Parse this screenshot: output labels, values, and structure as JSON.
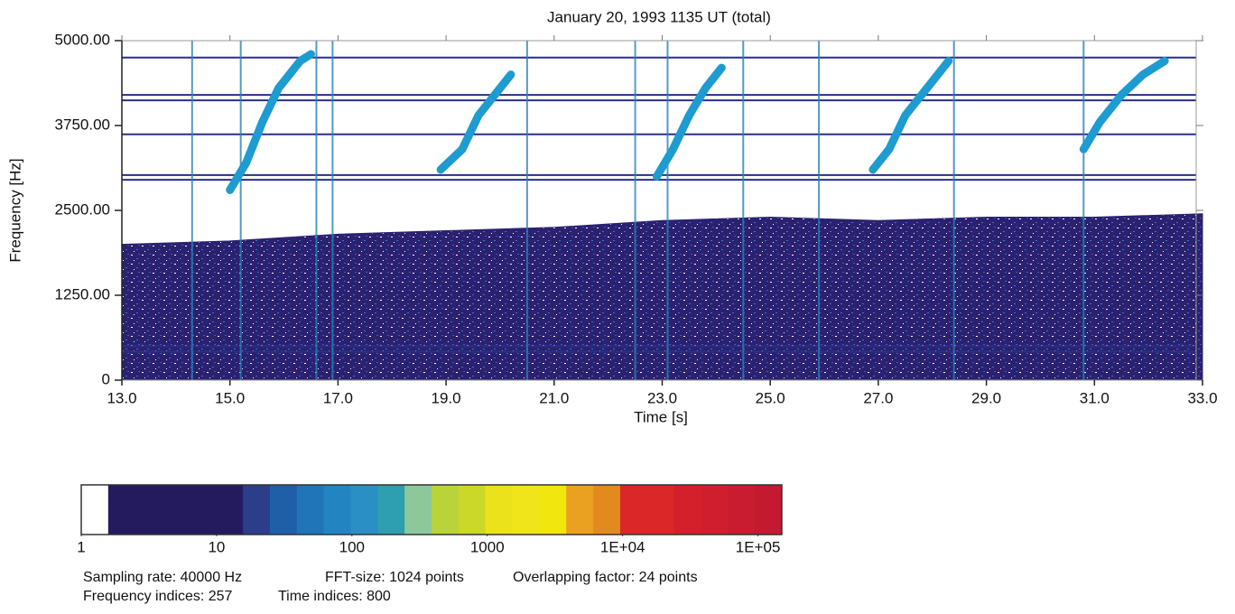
{
  "chart_data": {
    "type": "spectrogram",
    "title": "January 20, 1993 1135 UT (total)",
    "x_label": "Time [s]",
    "y_label": "Frequency [Hz]",
    "xlim": [
      13,
      33
    ],
    "ylim": [
      0,
      5000
    ],
    "xticks": [
      {
        "value": 13,
        "label": "13.0"
      },
      {
        "value": 15,
        "label": "15.0"
      },
      {
        "value": 17,
        "label": "17.0"
      },
      {
        "value": 19,
        "label": "19.0"
      },
      {
        "value": 21,
        "label": "21.0"
      },
      {
        "value": 23,
        "label": "23.0"
      },
      {
        "value": 25,
        "label": "25.0"
      },
      {
        "value": 27,
        "label": "27.0"
      },
      {
        "value": 29,
        "label": "29.0"
      },
      {
        "value": 31,
        "label": "31.0"
      },
      {
        "value": 33,
        "label": "33.0"
      }
    ],
    "yticks": [
      0,
      {
        "value": 1250,
        "label": "1250.00"
      },
      {
        "value": 2500,
        "label": "2500.00"
      },
      {
        "value": 3750,
        "label": "3750.00"
      },
      {
        "value": 5000,
        "label": "5000.00"
      }
    ],
    "grid": false,
    "background_band": {
      "color": "#2b2170",
      "x": [
        13,
        15,
        17,
        19,
        21,
        23,
        25,
        27,
        29,
        31,
        33
      ],
      "values": [
        2000,
        2050,
        2150,
        2200,
        2250,
        2350,
        2400,
        2350,
        2400,
        2400,
        2450
      ]
    },
    "horizontal_lines": {
      "color": "#2a2f8a",
      "values": [
        4750,
        4200,
        4120,
        3620,
        3020,
        2950,
        500,
        420
      ]
    },
    "vertical_lines": {
      "color": "#2a80b8",
      "values": [
        14.3,
        15.2,
        16.6,
        16.9,
        20.5,
        22.5,
        23.1,
        24.5,
        25.9,
        28.4,
        30.8
      ]
    },
    "traces": [
      {
        "color": "#1e9bd0",
        "x": [
          15.0,
          15.3,
          15.6,
          15.9,
          16.3,
          16.5
        ],
        "values": [
          2800,
          3200,
          3800,
          4300,
          4700,
          4800
        ]
      },
      {
        "color": "#1e9bd0",
        "x": [
          18.9,
          19.3,
          19.6,
          19.9,
          20.2
        ],
        "values": [
          3100,
          3400,
          3900,
          4200,
          4500
        ]
      },
      {
        "color": "#1e9bd0",
        "x": [
          22.9,
          23.2,
          23.5,
          23.8,
          24.1
        ],
        "values": [
          3000,
          3400,
          3900,
          4300,
          4600
        ]
      },
      {
        "color": "#1e9bd0",
        "x": [
          26.9,
          27.2,
          27.5,
          27.9,
          28.3
        ],
        "values": [
          3100,
          3400,
          3900,
          4300,
          4700
        ]
      },
      {
        "color": "#1e9bd0",
        "x": [
          30.8,
          31.1,
          31.5,
          31.9,
          32.3
        ],
        "values": [
          3400,
          3800,
          4200,
          4500,
          4700
        ]
      }
    ],
    "colorbar": {
      "scale": "log",
      "lim": [
        1,
        150000
      ],
      "ticks": [
        1,
        10,
        100,
        1000,
        {
          "value": 10000,
          "label": "1E+04"
        },
        {
          "value": 100000,
          "label": "1E+05"
        }
      ],
      "colors": [
        "#ffffff",
        "#241a5e",
        "#241a5e",
        "#241a5e",
        "#241a5e",
        "#241a5e",
        "#2c3d8a",
        "#1f5fa8",
        "#1f75b8",
        "#2285c2",
        "#2a8fc4",
        "#2d9fb0",
        "#8cc89a",
        "#b8d43a",
        "#cbd82a",
        "#ece21c",
        "#f0e51a",
        "#f2e60f",
        "#eaa021",
        "#e38a1e",
        "#db2727",
        "#db2727",
        "#d4202a",
        "#cf1f2e",
        "#c91c30",
        "#c31a32"
      ]
    },
    "notes": [
      [
        "Sampling rate: 40000 Hz",
        "FFT-size: 1024 points",
        "Overlapping factor: 24 points"
      ],
      [
        "Frequency indices: 257",
        "Time indices: 800"
      ]
    ]
  }
}
